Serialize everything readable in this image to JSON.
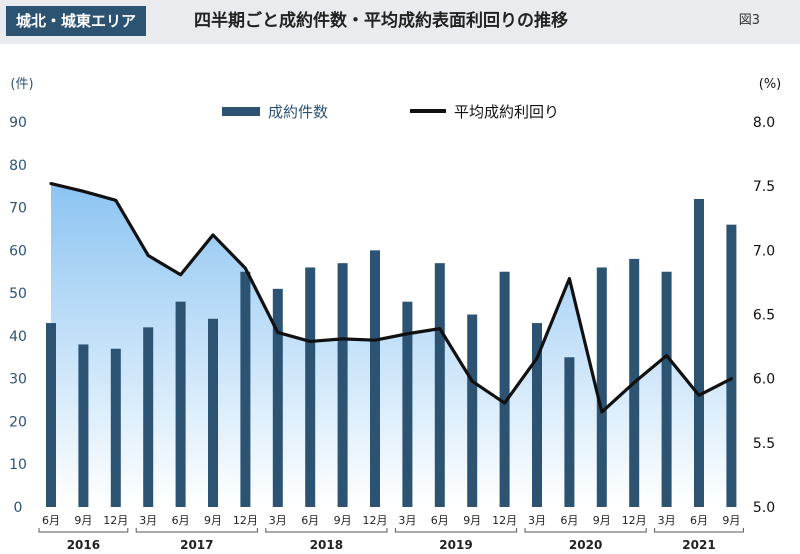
{
  "header": {
    "badge": "城北・城東エリア",
    "title": "四半期ごと成約件数・平均成約表面利回りの推移",
    "figure": "図3"
  },
  "colors": {
    "bar": "#2d5373",
    "line": "#111111",
    "axis_text": "#2d5373",
    "area_top": "#8cc4f2",
    "area_bottom": "#ffffff",
    "header_bg": "#e9ebee"
  },
  "chart_data": {
    "type": "bar",
    "left_unit": "(件)",
    "right_unit": "(%)",
    "legend": [
      "成約件数",
      "平均成約利回り"
    ],
    "left_ylim": [
      0,
      90
    ],
    "left_ticks": [
      "0",
      "10",
      "20",
      "30",
      "40",
      "50",
      "60",
      "70",
      "80",
      "90"
    ],
    "right_ylim": [
      5.0,
      8.0
    ],
    "right_ticks": [
      "5.0",
      "5.5",
      "6.0",
      "6.5",
      "7.0",
      "7.5",
      "8.0"
    ],
    "categories": [
      "6月",
      "9月",
      "12月",
      "3月",
      "6月",
      "9月",
      "12月",
      "3月",
      "6月",
      "9月",
      "12月",
      "3月",
      "6月",
      "9月",
      "12月",
      "3月",
      "6月",
      "9月",
      "12月",
      "3月",
      "6月",
      "9月"
    ],
    "years": [
      {
        "label": "2016",
        "start": 0,
        "end": 2
      },
      {
        "label": "2017",
        "start": 3,
        "end": 6
      },
      {
        "label": "2018",
        "start": 7,
        "end": 10
      },
      {
        "label": "2019",
        "start": 11,
        "end": 14
      },
      {
        "label": "2020",
        "start": 15,
        "end": 18
      },
      {
        "label": "2021",
        "start": 19,
        "end": 21
      }
    ],
    "series": [
      {
        "name": "成約件数",
        "type": "bar",
        "axis": "left",
        "values": [
          43,
          38,
          37,
          42,
          48,
          44,
          55,
          51,
          56,
          57,
          60,
          48,
          57,
          45,
          55,
          43,
          35,
          56,
          58,
          55,
          72,
          66
        ]
      },
      {
        "name": "平均成約利回り",
        "type": "line",
        "axis": "right",
        "values": [
          7.52,
          7.46,
          7.39,
          6.96,
          6.81,
          7.12,
          6.86,
          6.36,
          6.29,
          6.31,
          6.3,
          6.35,
          6.39,
          5.98,
          5.81,
          6.16,
          6.78,
          5.74,
          5.97,
          6.18,
          5.87,
          6.0
        ]
      }
    ],
    "grid": false
  }
}
